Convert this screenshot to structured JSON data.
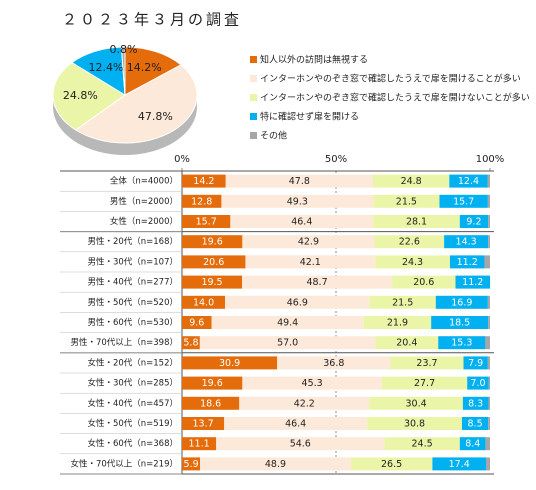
{
  "chart_data": [
    {
      "type": "pie",
      "title": "２０２３年３月の調査",
      "categories": [
        "知人以外の訪問は無視する",
        "インターホンやのぞき窓で確認したうえで扉を開けることが多い",
        "インターホンやのぞき窓で確認したうえで扉を開けないことが多い",
        "特に確認せず扉を開ける",
        "その他"
      ],
      "values": [
        14.2,
        47.8,
        24.8,
        12.4,
        0.8
      ],
      "value_labels": [
        "14.2%",
        "47.8%",
        "24.8%",
        "12.4%",
        "0.8%"
      ],
      "colors": [
        "#e46c0a",
        "#fde9d9",
        "#ebf5a8",
        "#00b0f0",
        "#a6a6a6"
      ]
    },
    {
      "type": "stacked_barh",
      "categories": [
        "全体（n=4000）",
        "男性（n=2000）",
        "女性（n=2000）",
        "男性・20代（n=168）",
        "男性・30代（n=107）",
        "男性・40代（n=277）",
        "男性・50代（n=520）",
        "男性・60代（n=530）",
        "男性・70代以上（n=398）",
        "女性・20代（n=152）",
        "女性・30代（n=285）",
        "女性・40代（n=457）",
        "女性・50代（n=519）",
        "女性・60代（n=368）",
        "女性・70代以上（n=219）"
      ],
      "xlim": [
        0,
        100
      ],
      "xticks": [
        {
          "value": 0,
          "label": "0%"
        },
        {
          "value": 50,
          "label": "50%"
        },
        {
          "value": 100,
          "label": "100%"
        }
      ],
      "series": [
        {
          "name": "知人以外の訪問は無視する",
          "color": "#e46c0a",
          "values": [
            14.2,
            12.8,
            15.7,
            19.6,
            20.6,
            19.5,
            14.0,
            9.6,
            5.8,
            30.9,
            19.6,
            18.6,
            13.7,
            11.1,
            5.9
          ],
          "value_labels": [
            "14.2",
            "12.8",
            "15.7",
            "19.6",
            "20.6",
            "19.5",
            "14.0",
            "9.6",
            "5.8",
            "30.9",
            "19.6",
            "18.6",
            "13.7",
            "11.1",
            "5.9"
          ]
        },
        {
          "name": "インターホンやのぞき窓で確認したうえで扉を開けることが多い",
          "color": "#fde9d9",
          "values": [
            47.8,
            49.3,
            46.4,
            42.9,
            42.1,
            48.7,
            46.9,
            49.4,
            57.0,
            36.8,
            45.3,
            42.2,
            46.4,
            54.6,
            48.9
          ],
          "value_labels": [
            "47.8",
            "49.3",
            "46.4",
            "42.9",
            "42.1",
            "48.7",
            "46.9",
            "49.4",
            "57.0",
            "36.8",
            "45.3",
            "42.2",
            "46.4",
            "54.6",
            "48.9"
          ]
        },
        {
          "name": "インターホンやのぞき窓で確認したうえで扉を開けないことが多い",
          "color": "#ebf5a8",
          "values": [
            24.8,
            21.5,
            28.1,
            22.6,
            24.3,
            20.6,
            21.5,
            21.9,
            20.4,
            23.7,
            27.7,
            30.4,
            30.8,
            24.5,
            26.5
          ],
          "value_labels": [
            "24.8",
            "21.5",
            "28.1",
            "22.6",
            "24.3",
            "20.6",
            "21.5",
            "21.9",
            "20.4",
            "23.7",
            "27.7",
            "30.4",
            "30.8",
            "24.5",
            "26.5"
          ]
        },
        {
          "name": "特に確認せず扉を開ける",
          "color": "#00b0f0",
          "values": [
            12.4,
            15.7,
            9.2,
            14.3,
            11.2,
            11.2,
            16.9,
            18.5,
            15.3,
            7.9,
            7.0,
            8.3,
            8.5,
            8.4,
            17.4
          ],
          "value_labels": [
            "12.4",
            "15.7",
            "9.2",
            "14.3",
            "11.2",
            "11.2",
            "16.9",
            "18.5",
            "15.3",
            "7.9",
            "7.0",
            "8.3",
            "8.5",
            "8.4",
            "17.4"
          ]
        },
        {
          "name": "その他",
          "color": "#a6a6a6",
          "values": [
            0.8,
            0.7,
            0.6,
            0.6,
            1.8,
            0,
            0.7,
            0.6,
            1.5,
            0.7,
            0.4,
            0.5,
            0.6,
            1.4,
            1.3
          ]
        }
      ]
    }
  ]
}
